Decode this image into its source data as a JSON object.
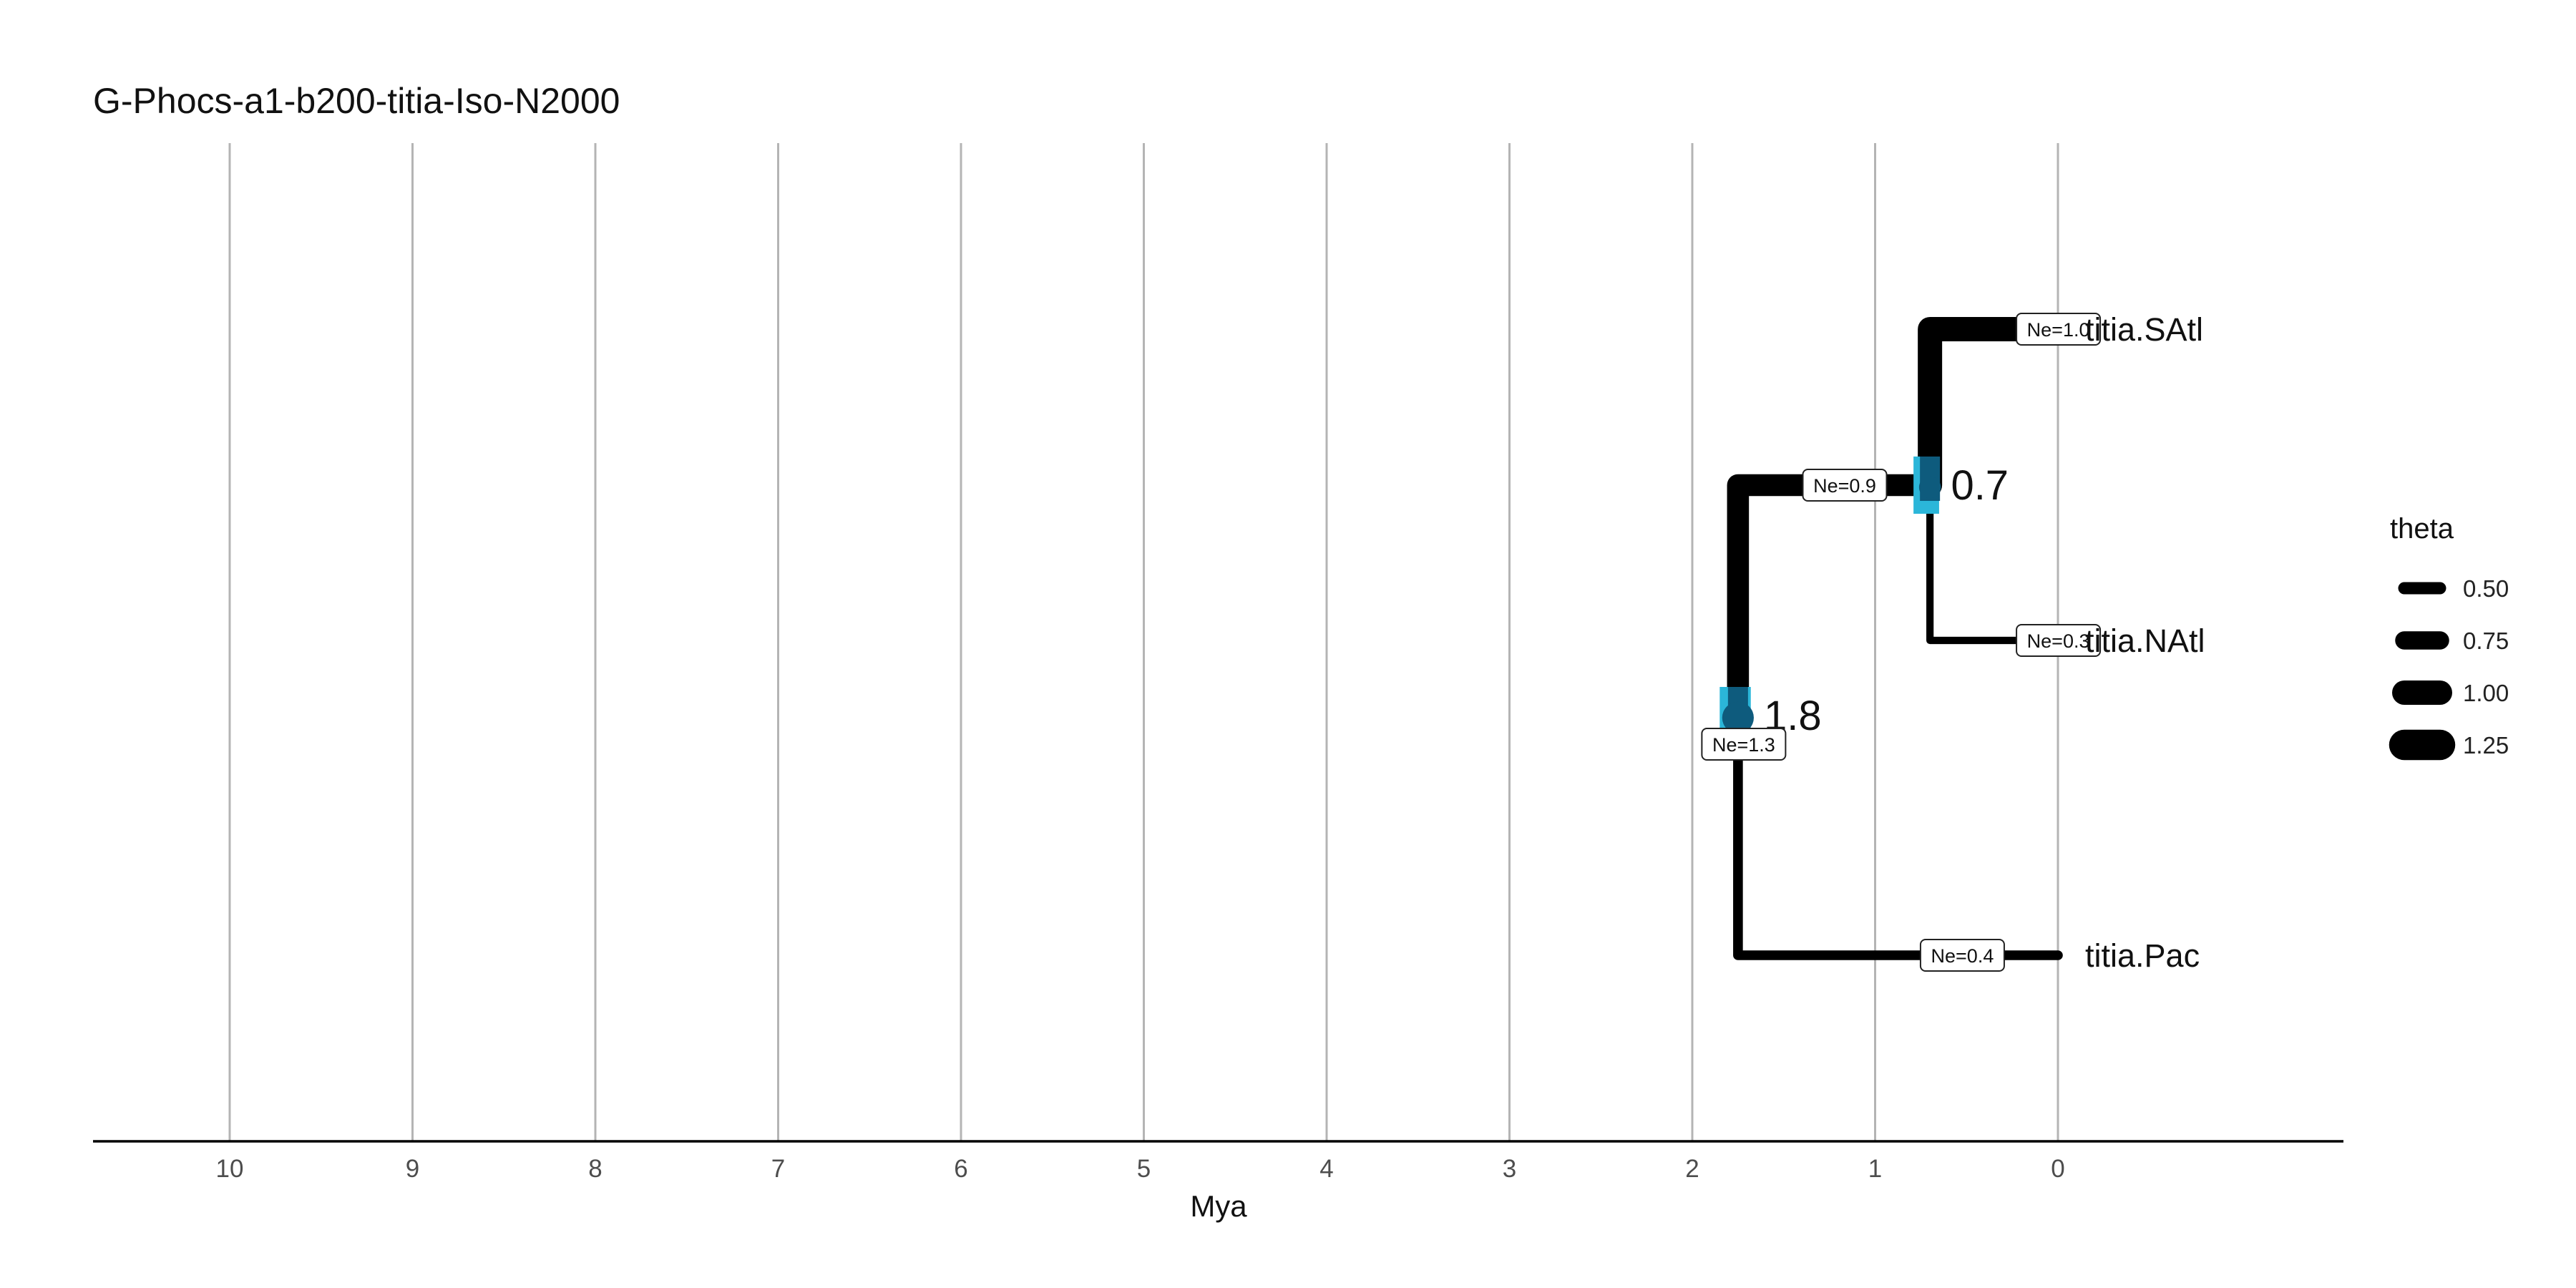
{
  "chart_data": {
    "type": "tree",
    "title": "G-Phocs-a1-b200-titia-Iso-N2000",
    "xlabel": "Mya",
    "x_ticks": [
      10,
      9,
      8,
      7,
      6,
      5,
      4,
      3,
      2,
      1,
      0
    ],
    "xlim": [
      10.75,
      -1.55
    ],
    "grid": true,
    "tips": [
      {
        "id": "SAtl",
        "label": "titia.SAtl",
        "time": 0,
        "theta": 1.0,
        "ne_label": "Ne=1.0"
      },
      {
        "id": "NAtl",
        "label": "titia.NAtl",
        "time": 0,
        "theta": 0.3,
        "ne_label": "Ne=0.3"
      },
      {
        "id": "Pac",
        "label": "titia.Pac",
        "time": 0,
        "theta": 0.4,
        "ne_label": "Ne=0.4"
      }
    ],
    "nodes": [
      {
        "id": "anc_atl",
        "age": 0.7,
        "age_label": "0.7",
        "hpd": [
          0.65,
          0.79
        ],
        "theta": 0.9,
        "ne_label": "Ne=0.9",
        "children": [
          "SAtl",
          "NAtl"
        ]
      },
      {
        "id": "root",
        "age": 1.75,
        "age_label": "1.8",
        "hpd": [
          1.68,
          1.85
        ],
        "theta": 1.3,
        "ne_label": "Ne=1.3",
        "children": [
          "anc_atl",
          "Pac"
        ]
      }
    ],
    "legend": {
      "title": "theta",
      "position": "right",
      "items": [
        {
          "label": "0.50",
          "value": 0.5
        },
        {
          "label": "0.75",
          "value": 0.75
        },
        {
          "label": "1.00",
          "value": 1.0
        },
        {
          "label": "1.25",
          "value": 1.25
        }
      ]
    },
    "colors": {
      "branch": "#000000",
      "node_dark": "#0e5b7d",
      "node_hpd": "#2bb6d9",
      "grid": "#b4b4b4"
    }
  }
}
